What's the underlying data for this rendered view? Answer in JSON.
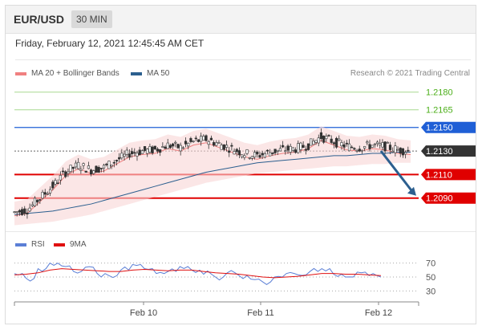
{
  "header": {
    "symbol": "EUR/USD",
    "timeframe": "30 MIN"
  },
  "datetime": "Friday, February 12, 2021 12:45:45 AM CET",
  "legend": {
    "bollinger": {
      "label": "MA 20 + Bollinger Bands",
      "color": "#f08080"
    },
    "ma50": {
      "label": "MA 50",
      "color": "#2c5f8f"
    },
    "credit": "Research © 2021 Trading Central"
  },
  "rsi_legend": {
    "rsi": {
      "label": "RSI",
      "color": "#5b7fd6"
    },
    "ma9": {
      "label": "9MA",
      "color": "#e01010"
    }
  },
  "chart_data": {
    "type": "line",
    "price_range": [
      1.2068,
      1.2188
    ],
    "levels": [
      {
        "label": "1.2180",
        "value": 1.218,
        "color": "#4caf1a",
        "kind": "target",
        "style": "green-label"
      },
      {
        "label": "1.2165",
        "value": 1.2165,
        "color": "#4caf1a",
        "kind": "target",
        "style": "green-label"
      },
      {
        "label": "1.2150",
        "value": 1.215,
        "color": "#1f5fd6",
        "kind": "pivot",
        "style": "blue-box"
      },
      {
        "label": "1.2130",
        "value": 1.213,
        "color": "#333333",
        "kind": "last",
        "style": "dark-box"
      },
      {
        "label": "1.2110",
        "value": 1.211,
        "color": "#e00000",
        "kind": "support",
        "style": "red-box"
      },
      {
        "label": "1.2090",
        "value": 1.209,
        "color": "#e00000",
        "kind": "support",
        "style": "red-box"
      }
    ],
    "x_ticks": [
      "Feb 10",
      "Feb 11",
      "Feb 12"
    ],
    "rsi_ticks": [
      70,
      50,
      30
    ],
    "rsi_range": [
      20,
      80
    ],
    "forecast_arrow": {
      "from": 1.213,
      "to": 1.209,
      "color": "#2c5f8f"
    },
    "series": [
      {
        "name": "MA 50",
        "values": [
          1.2076,
          1.2077,
          1.2078,
          1.2079,
          1.2081,
          1.2083,
          1.2085,
          1.2088,
          1.2091,
          1.2094,
          1.2097,
          1.21,
          1.2103,
          1.2106,
          1.2109,
          1.2112,
          1.2114,
          1.2116,
          1.2118,
          1.212,
          1.2121,
          1.2122,
          1.2123,
          1.2124,
          1.2125,
          1.2126,
          1.2126,
          1.2127,
          1.2128,
          1.2128,
          1.2129,
          1.2129
        ]
      },
      {
        "name": "RSI",
        "values": [
          55,
          48,
          62,
          70,
          66,
          58,
          64,
          55,
          52,
          60,
          68,
          62,
          55,
          58,
          65,
          60,
          54,
          50,
          56,
          52,
          47,
          43,
          50,
          55,
          53,
          58,
          62,
          54,
          50,
          57,
          52,
          50
        ]
      },
      {
        "name": "9MA",
        "values": [
          53,
          54,
          56,
          60,
          62,
          61,
          60,
          59,
          58,
          58,
          60,
          61,
          60,
          59,
          60,
          60,
          58,
          56,
          55,
          54,
          52,
          50,
          49,
          50,
          51,
          53,
          55,
          55,
          54,
          54,
          53,
          52
        ]
      }
    ]
  }
}
